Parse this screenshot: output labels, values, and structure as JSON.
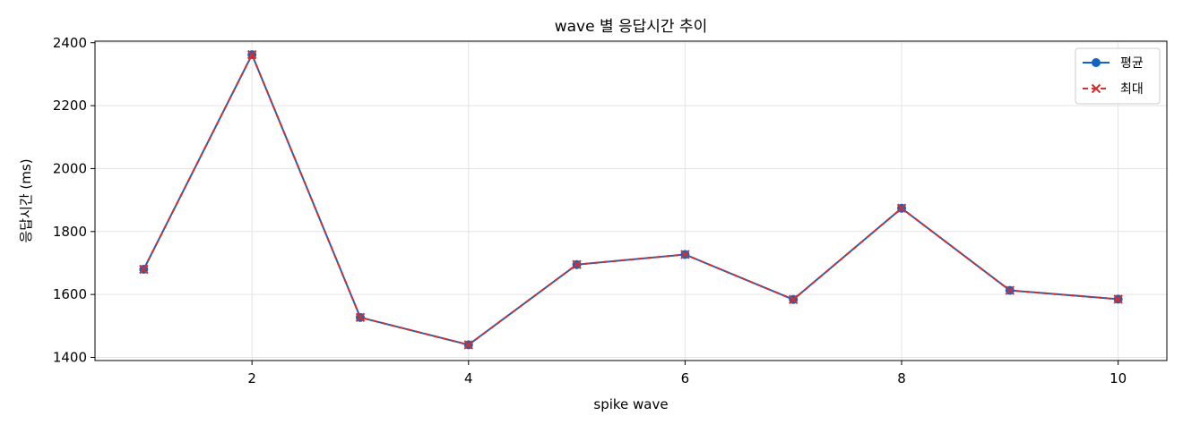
{
  "chart_data": {
    "type": "line",
    "title": "wave 별 응답시간 추이",
    "xlabel": "spike wave",
    "ylabel": "응답시간 (ms)",
    "x": [
      1,
      2,
      3,
      4,
      5,
      6,
      7,
      8,
      9,
      10
    ],
    "xlim": [
      0.55,
      10.45
    ],
    "ylim": [
      1390,
      2405
    ],
    "xticks": [
      2,
      4,
      6,
      8,
      10
    ],
    "yticks": [
      1400,
      1600,
      1800,
      2000,
      2200,
      2400
    ],
    "grid": true,
    "legend_position": "top-right",
    "series": [
      {
        "name": "평균",
        "values": [
          1680,
          2362,
          1527,
          1440,
          1695,
          1727,
          1584,
          1874,
          1613,
          1585
        ],
        "color": "#1565c0",
        "marker": "circle",
        "linestyle": "solid"
      },
      {
        "name": "최대",
        "values": [
          1680,
          2362,
          1527,
          1440,
          1695,
          1727,
          1584,
          1874,
          1613,
          1585
        ],
        "color": "#d32f2f",
        "marker": "x",
        "linestyle": "dashed"
      }
    ]
  }
}
